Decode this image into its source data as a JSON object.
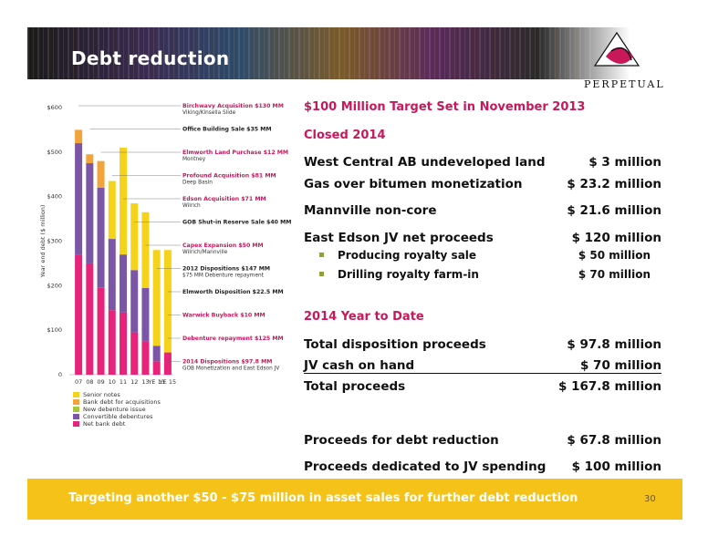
{
  "header": {
    "title": "Debt reduction",
    "logo_text": "PERPETUAL"
  },
  "right_panel": {
    "target_heading": "$100 Million Target Set in November 2013",
    "closed_heading": "Closed 2014",
    "closed_items": [
      {
        "label": "West Central AB undeveloped land",
        "value": "$ 3 million"
      },
      {
        "label": "Gas over bitumen monetization",
        "value": "$ 23.2 million"
      },
      {
        "label": "Mannville non-core",
        "value": "$ 21.6 million"
      },
      {
        "label": "East Edson JV net proceeds",
        "value": "$ 120 million"
      }
    ],
    "sub_items": [
      {
        "label": "Producing royalty sale",
        "value": "$ 50 million"
      },
      {
        "label": "Drilling royalty farm-in",
        "value": "$ 70 million"
      }
    ],
    "ytd_heading": "2014 Year to Date",
    "ytd_items": [
      {
        "label": "Total disposition proceeds",
        "value": "$ 97.8 million"
      },
      {
        "label": "JV cash on hand",
        "value": "$ 70 million"
      },
      {
        "label": "Total proceeds",
        "value": "$ 167.8 million"
      }
    ],
    "final_items": [
      {
        "label": "Proceeds  for debt reduction",
        "value": "$ 67.8 million"
      },
      {
        "label": "Proceeds dedicated to JV spending",
        "value": "$ 100 million"
      }
    ]
  },
  "footer": {
    "message": "Targeting another $50 - $75 million in asset sales for further debt reduction",
    "page_number": "30"
  },
  "chart_data": {
    "type": "bar",
    "stacked": true,
    "ylabel": "Year end debt ($ million)",
    "ylim": [
      0,
      600
    ],
    "yticks": [
      0,
      100,
      200,
      300,
      400,
      500,
      600
    ],
    "ytick_labels": [
      "0",
      "$100",
      "$200",
      "$300",
      "$400",
      "$500",
      "$600"
    ],
    "categories": [
      "07",
      "08",
      "09",
      "10",
      "11",
      "12",
      "13",
      "YE 13",
      "YE 15"
    ],
    "series": [
      {
        "name": "Net bank debt",
        "color": "#e8237a",
        "values": [
          270,
          250,
          195,
          145,
          140,
          95,
          75,
          30,
          50
        ]
      },
      {
        "name": "Convertible debentures",
        "color": "#7b56a6",
        "values": [
          250,
          225,
          225,
          160,
          130,
          140,
          120,
          35,
          0
        ]
      },
      {
        "name": "New debenture issue",
        "color": "#a6c73c",
        "values": [
          0,
          0,
          0,
          0,
          0,
          0,
          0,
          0,
          0
        ]
      },
      {
        "name": "Bank debt for acquisitions",
        "color": "#f4a23a",
        "values": [
          30,
          20,
          60,
          0,
          0,
          0,
          0,
          0,
          0
        ]
      },
      {
        "name": "Senior notes",
        "color": "#f5d31a",
        "values": [
          0,
          0,
          0,
          130,
          240,
          150,
          170,
          215,
          230
        ]
      }
    ],
    "legend_position": "bottom-left",
    "annotations": [
      {
        "text": "Birchwavy Acquisition $130 MM",
        "sub": "Viking/Kinsella Slide",
        "color": "#c8185a"
      },
      {
        "text": "Office Building Sale $35 MM",
        "sub": "",
        "color": "#222"
      },
      {
        "text": "Elmworth Land Purchase $12 MM",
        "sub": "Montney",
        "color": "#c8185a"
      },
      {
        "text": "Profound Acquisition $81 MM",
        "sub": "Deep Basin",
        "color": "#c8185a"
      },
      {
        "text": "Edson Acquisition $71 MM",
        "sub": "Wilrich",
        "color": "#c8185a"
      },
      {
        "text": "GOB Shut-in Reserve Sale $40 MM",
        "sub": "",
        "color": "#222"
      },
      {
        "text": "Capex Expansion $50 MM",
        "sub": "Wilrich/Mannville",
        "color": "#c8185a"
      },
      {
        "text": "2012 Dispositions $147 MM",
        "sub": "$75 MM Debenture repayment",
        "color": "#222"
      },
      {
        "text": "Elmworth Disposition $22.5 MM",
        "sub": "",
        "color": "#222"
      },
      {
        "text": "Warwick Buyback $10 MM",
        "sub": "",
        "color": "#c8185a"
      },
      {
        "text": "Debenture repayment $125 MM",
        "sub": "",
        "color": "#c8185a"
      },
      {
        "text": "2014 Dispositions $97.8 MM",
        "sub": "GOB Monetization and East Edson JV",
        "color": "#c8185a"
      }
    ]
  }
}
